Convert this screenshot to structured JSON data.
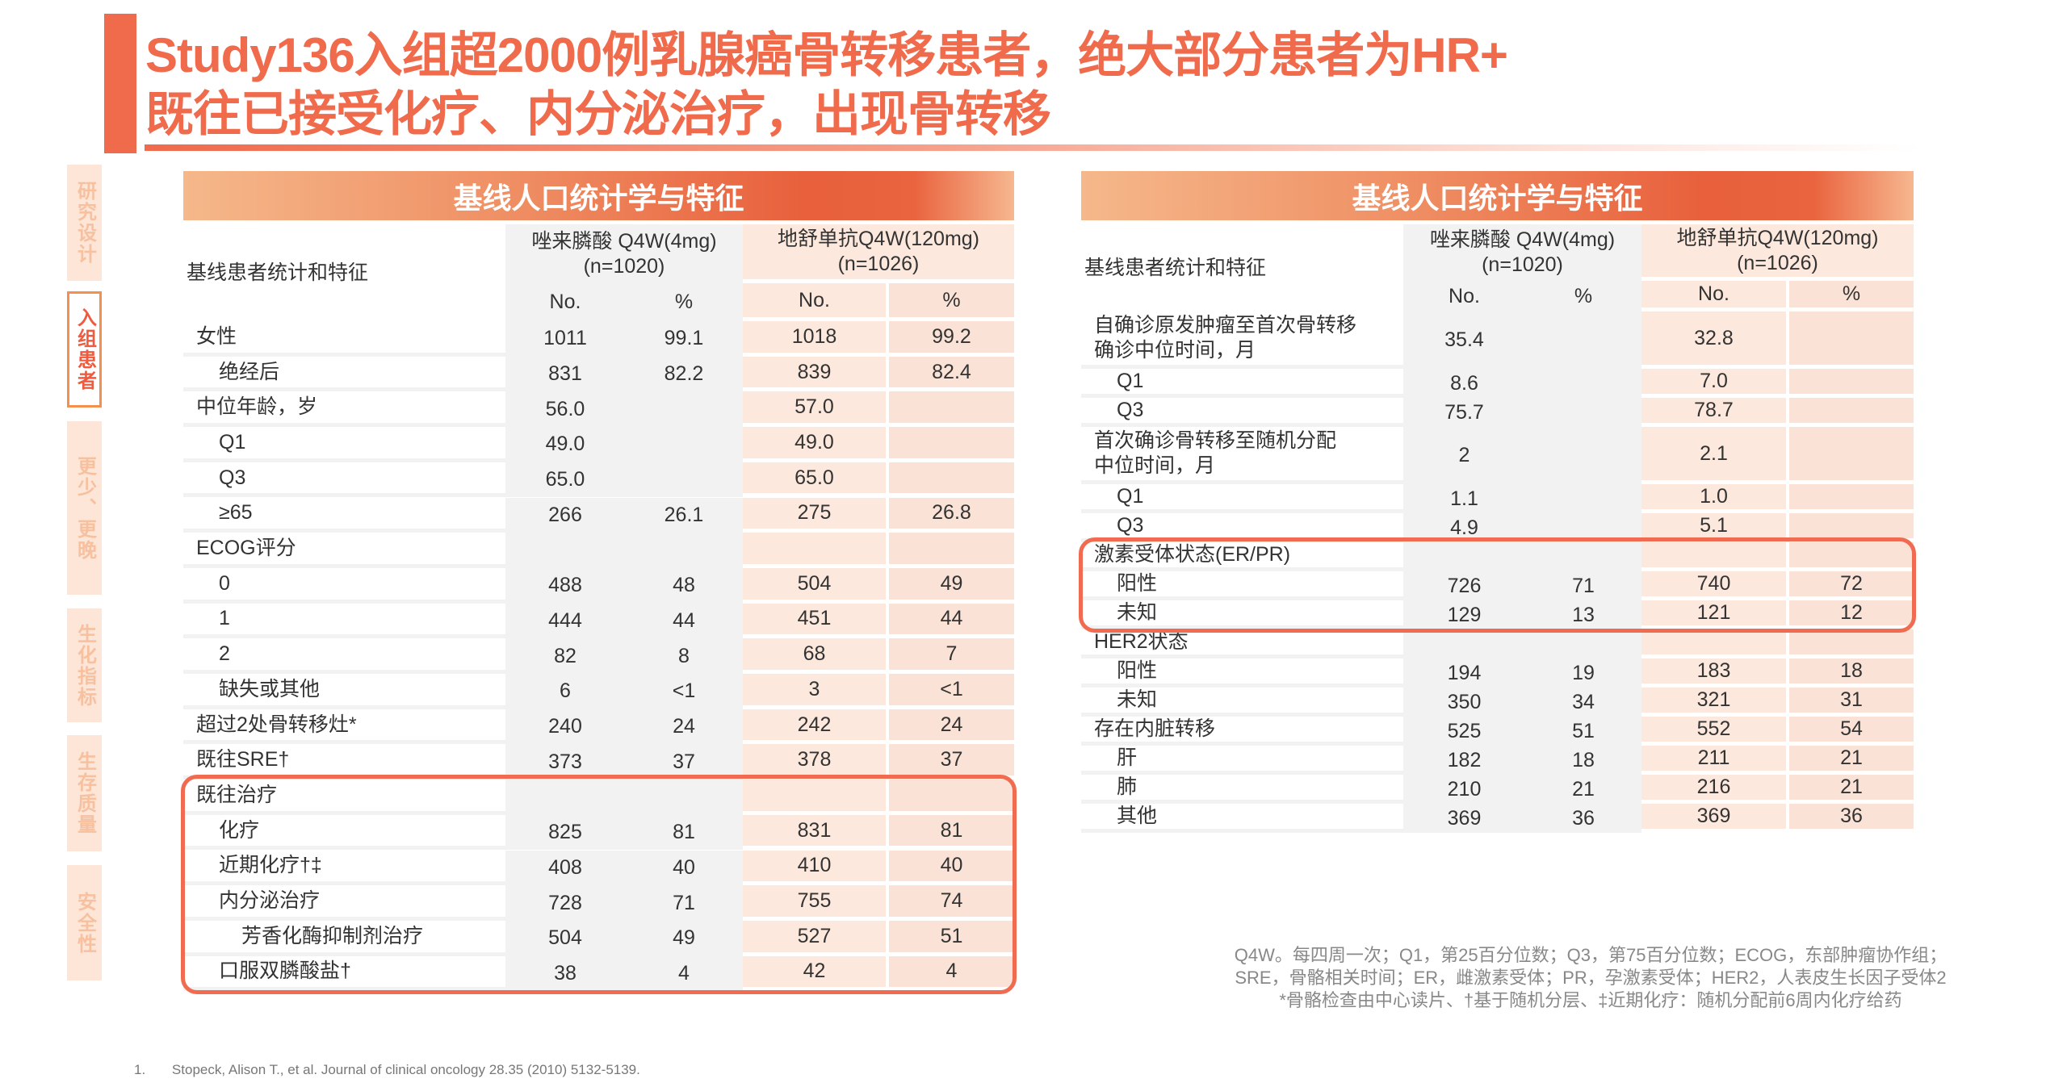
{
  "title": {
    "line1": "Study136入组超2000例乳腺癌骨转移患者，绝大部分患者为HR+",
    "line2": "既往已接受化疗、内分泌治疗，出现骨转移"
  },
  "sidebar": {
    "tabs": [
      {
        "label": "研究设计",
        "active": false
      },
      {
        "label": "入组患者",
        "active": true
      },
      {
        "label": "更少、更晚",
        "active": false
      },
      {
        "label": "生化指标",
        "active": false
      },
      {
        "label": "生存质量",
        "active": false
      },
      {
        "label": "安全性",
        "active": false
      }
    ]
  },
  "colors": {
    "accent": "#f06a4c",
    "zol_bg": "#f2f2f2",
    "deno_bg": "#fce8dc"
  },
  "tables": [
    {
      "title": "基线人口统计学与特征",
      "row_label_header": "基线患者统计和特征",
      "group1": "唑来膦酸 Q4W(4mg)\n(n=1020)",
      "group2": "地舒单抗Q4W(120mg)\n(n=1026)",
      "sub_headers": [
        "No.",
        "%",
        "No.",
        "%"
      ],
      "rows": [
        {
          "label": "女性",
          "indent": 0,
          "values": [
            "1011",
            "99.1",
            "1018",
            "99.2"
          ]
        },
        {
          "label": "绝经后",
          "indent": 1,
          "values": [
            "831",
            "82.2",
            "839",
            "82.4"
          ]
        },
        {
          "label": "中位年龄，岁",
          "indent": 0,
          "values": [
            "56.0",
            "",
            "57.0",
            ""
          ]
        },
        {
          "label": "Q1",
          "indent": 1,
          "values": [
            "49.0",
            "",
            "49.0",
            ""
          ]
        },
        {
          "label": "Q3",
          "indent": 1,
          "values": [
            "65.0",
            "",
            "65.0",
            ""
          ]
        },
        {
          "label": "≥65",
          "indent": 1,
          "values": [
            "266",
            "26.1",
            "275",
            "26.8"
          ]
        },
        {
          "label": "ECOG评分",
          "indent": 0,
          "values": [
            "",
            "",
            "",
            ""
          ]
        },
        {
          "label": "0",
          "indent": 1,
          "values": [
            "488",
            "48",
            "504",
            "49"
          ]
        },
        {
          "label": "1",
          "indent": 1,
          "values": [
            "444",
            "44",
            "451",
            "44"
          ]
        },
        {
          "label": "2",
          "indent": 1,
          "values": [
            "82",
            "8",
            "68",
            "7"
          ]
        },
        {
          "label": "缺失或其他",
          "indent": 1,
          "values": [
            "6",
            "<1",
            "3",
            "<1"
          ]
        },
        {
          "label": "超过2处骨转移灶*",
          "indent": 0,
          "values": [
            "240",
            "24",
            "242",
            "24"
          ]
        },
        {
          "label": "既往SRE†",
          "indent": 0,
          "values": [
            "373",
            "37",
            "378",
            "37"
          ]
        },
        {
          "label": "既往治疗",
          "indent": 0,
          "values": [
            "",
            "",
            "",
            ""
          ],
          "highlight": true
        },
        {
          "label": "化疗",
          "indent": 1,
          "values": [
            "825",
            "81",
            "831",
            "81"
          ],
          "highlight": true
        },
        {
          "label": "近期化疗†‡",
          "indent": 1,
          "values": [
            "408",
            "40",
            "410",
            "40"
          ],
          "highlight": true
        },
        {
          "label": "内分泌治疗",
          "indent": 1,
          "values": [
            "728",
            "71",
            "755",
            "74"
          ],
          "highlight": true
        },
        {
          "label": "芳香化酶抑制剂治疗",
          "indent": 2,
          "values": [
            "504",
            "49",
            "527",
            "51"
          ],
          "highlight": true
        },
        {
          "label": "口服双膦酸盐†",
          "indent": 1,
          "values": [
            "38",
            "4",
            "42",
            "4"
          ],
          "highlight": true
        }
      ]
    },
    {
      "title": "基线人口统计学与特征",
      "row_label_header": "基线患者统计和特征",
      "group1": "唑来膦酸 Q4W(4mg)\n(n=1020)",
      "group2": "地舒单抗Q4W(120mg)\n(n=1026)",
      "sub_headers": [
        "No.",
        "%",
        "No.",
        "%"
      ],
      "rows": [
        {
          "label": "自确诊原发肿瘤至首次骨转移\n确诊中位时间，月",
          "indent": 0,
          "tall": true,
          "values": [
            "35.4",
            "",
            "32.8",
            ""
          ]
        },
        {
          "label": "Q1",
          "indent": 1,
          "values": [
            "8.6",
            "",
            "7.0",
            ""
          ]
        },
        {
          "label": "Q3",
          "indent": 1,
          "values": [
            "75.7",
            "",
            "78.7",
            ""
          ]
        },
        {
          "label": "首次确诊骨转移至随机分配\n中位时间，月",
          "indent": 0,
          "tall": true,
          "values": [
            "2",
            "",
            "2.1",
            ""
          ]
        },
        {
          "label": "Q1",
          "indent": 1,
          "values": [
            "1.1",
            "",
            "1.0",
            ""
          ]
        },
        {
          "label": "Q3",
          "indent": 1,
          "values": [
            "4.9",
            "",
            "5.1",
            ""
          ]
        },
        {
          "label": "激素受体状态(ER/PR)",
          "indent": 0,
          "values": [
            "",
            "",
            "",
            ""
          ],
          "highlight": true
        },
        {
          "label": "阳性",
          "indent": 1,
          "values": [
            "726",
            "71",
            "740",
            "72"
          ],
          "highlight": true
        },
        {
          "label": "未知",
          "indent": 1,
          "values": [
            "129",
            "13",
            "121",
            "12"
          ],
          "highlight": true
        },
        {
          "label": "HER2状态",
          "indent": 0,
          "values": [
            "",
            "",
            "",
            ""
          ]
        },
        {
          "label": "阳性",
          "indent": 1,
          "values": [
            "194",
            "19",
            "183",
            "18"
          ]
        },
        {
          "label": "未知",
          "indent": 1,
          "values": [
            "350",
            "34",
            "321",
            "31"
          ]
        },
        {
          "label": "存在内脏转移",
          "indent": 0,
          "values": [
            "525",
            "51",
            "552",
            "54"
          ]
        },
        {
          "label": "肝",
          "indent": 1,
          "values": [
            "182",
            "18",
            "211",
            "21"
          ]
        },
        {
          "label": "肺",
          "indent": 1,
          "values": [
            "210",
            "21",
            "216",
            "21"
          ]
        },
        {
          "label": "其他",
          "indent": 1,
          "values": [
            "369",
            "36",
            "369",
            "36"
          ]
        }
      ]
    }
  ],
  "footnote": {
    "line1": "Q4W。每四周一次；Q1，第25百分位数；Q3，第75百分位数；ECOG，东部肿瘤协作组；",
    "line2": "SRE，骨骼相关时间；ER，雌激素受体；PR，孕激素受体；HER2，人表皮生长因子受体2",
    "line3": "*骨骼检查由中心读片、†基于随机分层、‡近期化疗：随机分配前6周内化疗给药"
  },
  "reference": {
    "number": "1.",
    "text": "Stopeck, Alison T., et al. Journal of clinical oncology 28.35 (2010) 5132-5139."
  }
}
